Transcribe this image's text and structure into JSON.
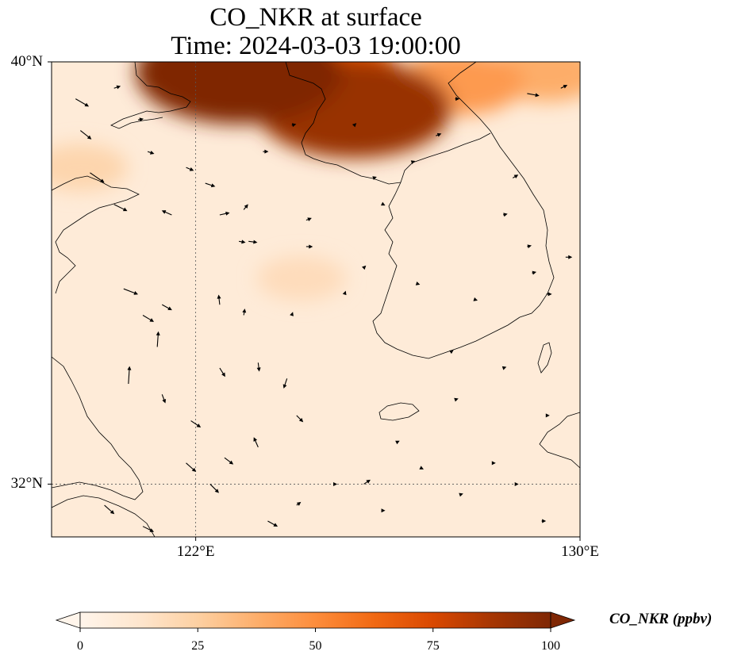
{
  "title": {
    "line1": "CO_NKR at surface",
    "line2": "Time: 2024-03-03 19:00:00"
  },
  "map": {
    "extent": {
      "lon_min": 119,
      "lon_max": 130,
      "lat_min": 31,
      "lat_max": 40
    },
    "lat_ticks": [
      {
        "value": 40,
        "label": "40°N"
      },
      {
        "value": 32,
        "label": "32°N"
      }
    ],
    "lon_ticks": [
      {
        "value": 122,
        "label": "122°E"
      },
      {
        "value": 130,
        "label": "130°E"
      }
    ],
    "gridlines": [
      {
        "type": "lon",
        "value": 122
      },
      {
        "type": "lat",
        "value": 32
      }
    ],
    "field_name": "CO_NKR",
    "concentration_hotspots_ppbv": [
      {
        "lon": 122.9,
        "lat": 39.8,
        "value": 100
      },
      {
        "lon": 125.3,
        "lat": 39.1,
        "value": 92
      },
      {
        "lon": 124.6,
        "lat": 39.7,
        "value": 70
      },
      {
        "lon": 127.5,
        "lat": 39.6,
        "value": 45
      },
      {
        "lon": 129.3,
        "lat": 39.8,
        "value": 38
      },
      {
        "lon": 119.6,
        "lat": 38.0,
        "value": 22
      },
      {
        "lon": 124.2,
        "lat": 35.9,
        "value": 18
      }
    ],
    "background_ppbv": 8,
    "wind_vectors": [
      {
        "lon": 119.5,
        "lat": 39.3,
        "u": 1.2,
        "v": -0.7
      },
      {
        "lon": 119.6,
        "lat": 38.7,
        "u": 1.0,
        "v": -0.8
      },
      {
        "lon": 119.8,
        "lat": 37.9,
        "u": 1.3,
        "v": -0.9
      },
      {
        "lon": 120.3,
        "lat": 37.3,
        "u": 1.2,
        "v": -0.6
      },
      {
        "lon": 121.5,
        "lat": 37.1,
        "u": -0.9,
        "v": 0.4
      },
      {
        "lon": 120.5,
        "lat": 35.7,
        "u": 1.3,
        "v": -0.5
      },
      {
        "lon": 120.9,
        "lat": 35.2,
        "u": 1.0,
        "v": -0.6
      },
      {
        "lon": 121.3,
        "lat": 35.4,
        "u": 0.9,
        "v": -0.5
      },
      {
        "lon": 121.2,
        "lat": 34.6,
        "u": 0.1,
        "v": 1.4
      },
      {
        "lon": 120.6,
        "lat": 33.9,
        "u": 0.1,
        "v": 1.6
      },
      {
        "lon": 121.3,
        "lat": 33.7,
        "u": 0.3,
        "v": -0.8
      },
      {
        "lon": 121.9,
        "lat": 33.2,
        "u": 0.9,
        "v": -0.6
      },
      {
        "lon": 121.8,
        "lat": 32.4,
        "u": 0.9,
        "v": -0.8
      },
      {
        "lon": 122.3,
        "lat": 32.0,
        "u": 0.8,
        "v": -0.8
      },
      {
        "lon": 120.1,
        "lat": 31.6,
        "u": 0.9,
        "v": -0.8
      },
      {
        "lon": 120.9,
        "lat": 31.2,
        "u": 1.0,
        "v": -0.5
      },
      {
        "lon": 122.5,
        "lat": 34.2,
        "u": 0.5,
        "v": -0.8
      },
      {
        "lon": 122.5,
        "lat": 35.4,
        "u": -0.1,
        "v": 0.9
      },
      {
        "lon": 123.3,
        "lat": 34.3,
        "u": 0.1,
        "v": -0.8
      },
      {
        "lon": 123.9,
        "lat": 34.0,
        "u": -0.3,
        "v": -0.9
      },
      {
        "lon": 124.1,
        "lat": 33.3,
        "u": 0.6,
        "v": -0.6
      },
      {
        "lon": 123.3,
        "lat": 32.7,
        "u": -0.4,
        "v": 0.9
      },
      {
        "lon": 122.6,
        "lat": 32.5,
        "u": 0.8,
        "v": -0.6
      },
      {
        "lon": 123.0,
        "lat": 35.2,
        "u": 0.1,
        "v": 0.6
      },
      {
        "lon": 124.0,
        "lat": 35.2,
        "u": 0.1,
        "v": 0.3
      },
      {
        "lon": 122.9,
        "lat": 36.6,
        "u": 0.6,
        "v": -0.1
      },
      {
        "lon": 122.5,
        "lat": 37.1,
        "u": 0.9,
        "v": 0.2
      },
      {
        "lon": 122.2,
        "lat": 37.7,
        "u": 0.9,
        "v": -0.3
      },
      {
        "lon": 123.1,
        "lat": 36.6,
        "u": 0.8,
        "v": -0.1
      },
      {
        "lon": 124.3,
        "lat": 36.5,
        "u": 0.6,
        "v": 0.0
      },
      {
        "lon": 123.0,
        "lat": 37.2,
        "u": 0.4,
        "v": 0.5
      },
      {
        "lon": 124.3,
        "lat": 37.0,
        "u": 0.5,
        "v": 0.2
      },
      {
        "lon": 125.1,
        "lat": 35.6,
        "u": 0.1,
        "v": 0.3
      },
      {
        "lon": 125.5,
        "lat": 36.1,
        "u": 0.2,
        "v": 0.2
      },
      {
        "lon": 125.9,
        "lat": 37.3,
        "u": 0.2,
        "v": -0.1
      },
      {
        "lon": 125.7,
        "lat": 37.8,
        "u": 0.3,
        "v": 0.1
      },
      {
        "lon": 126.5,
        "lat": 38.1,
        "u": 0.3,
        "v": 0.1
      },
      {
        "lon": 126.6,
        "lat": 35.8,
        "u": 0.3,
        "v": -0.1
      },
      {
        "lon": 128.4,
        "lat": 37.1,
        "u": 0.4,
        "v": 0.1
      },
      {
        "lon": 128.6,
        "lat": 37.8,
        "u": 0.5,
        "v": 0.3
      },
      {
        "lon": 128.9,
        "lat": 36.5,
        "u": 0.4,
        "v": 0.1
      },
      {
        "lon": 129.3,
        "lat": 35.6,
        "u": 0.5,
        "v": 0.0
      },
      {
        "lon": 129.0,
        "lat": 36.0,
        "u": 0.4,
        "v": 0.1
      },
      {
        "lon": 129.7,
        "lat": 36.3,
        "u": 0.6,
        "v": 0.0
      },
      {
        "lon": 127.8,
        "lat": 35.5,
        "u": 0.3,
        "v": -0.1
      },
      {
        "lon": 127.3,
        "lat": 34.5,
        "u": 0.3,
        "v": 0.2
      },
      {
        "lon": 128.4,
        "lat": 34.2,
        "u": 0.3,
        "v": 0.1
      },
      {
        "lon": 127.4,
        "lat": 33.6,
        "u": 0.3,
        "v": 0.1
      },
      {
        "lon": 128.2,
        "lat": 32.4,
        "u": 0.2,
        "v": 0.0
      },
      {
        "lon": 129.3,
        "lat": 33.3,
        "u": 0.3,
        "v": 0.0
      },
      {
        "lon": 128.7,
        "lat": 32.0,
        "u": 0.1,
        "v": 0.0
      },
      {
        "lon": 127.5,
        "lat": 31.8,
        "u": 0.3,
        "v": 0.1
      },
      {
        "lon": 126.7,
        "lat": 32.3,
        "u": 0.2,
        "v": -0.1
      },
      {
        "lon": 125.5,
        "lat": 32.0,
        "u": 0.6,
        "v": 0.4
      },
      {
        "lon": 126.2,
        "lat": 32.8,
        "u": 0.2,
        "v": 0.1
      },
      {
        "lon": 124.1,
        "lat": 31.6,
        "u": 0.4,
        "v": 0.3
      },
      {
        "lon": 123.5,
        "lat": 31.3,
        "u": 0.9,
        "v": -0.5
      },
      {
        "lon": 129.2,
        "lat": 31.3,
        "u": 0.4,
        "v": 0.0
      },
      {
        "lon": 125.9,
        "lat": 31.5,
        "u": 0.2,
        "v": 0.0
      },
      {
        "lon": 124.9,
        "lat": 32.0,
        "u": 0.2,
        "v": 0.0
      },
      {
        "lon": 127.4,
        "lat": 39.3,
        "u": 0.4,
        "v": 0.0
      },
      {
        "lon": 128.9,
        "lat": 39.4,
        "u": 1.1,
        "v": -0.2
      },
      {
        "lon": 129.6,
        "lat": 39.5,
        "u": 0.6,
        "v": 0.3
      },
      {
        "lon": 127.0,
        "lat": 38.6,
        "u": 0.5,
        "v": 0.2
      },
      {
        "lon": 125.3,
        "lat": 38.8,
        "u": 0.2,
        "v": 0.2
      },
      {
        "lon": 124.0,
        "lat": 38.8,
        "u": 0.4,
        "v": 0.1
      },
      {
        "lon": 123.4,
        "lat": 38.3,
        "u": 0.5,
        "v": 0.0
      },
      {
        "lon": 121.0,
        "lat": 38.3,
        "u": 0.6,
        "v": -0.2
      },
      {
        "lon": 121.8,
        "lat": 38.0,
        "u": 0.7,
        "v": -0.3
      },
      {
        "lon": 120.8,
        "lat": 38.9,
        "u": 0.5,
        "v": 0.1
      },
      {
        "lon": 120.3,
        "lat": 39.5,
        "u": 0.6,
        "v": 0.2
      }
    ]
  },
  "colorbar": {
    "title": "CO_NKR (ppbv)",
    "min": 0,
    "max": 100,
    "ticks": [
      {
        "value": 0,
        "label": "0"
      },
      {
        "value": 25,
        "label": "25"
      },
      {
        "value": 50,
        "label": "50"
      },
      {
        "value": 75,
        "label": "75"
      },
      {
        "value": 100,
        "label": "100"
      }
    ],
    "extend": "both",
    "colors": [
      "#fff5eb",
      "#fee6ce",
      "#fdd0a2",
      "#fdae6b",
      "#fd8d3c",
      "#f16913",
      "#d94801",
      "#a63603",
      "#7f2704"
    ]
  }
}
